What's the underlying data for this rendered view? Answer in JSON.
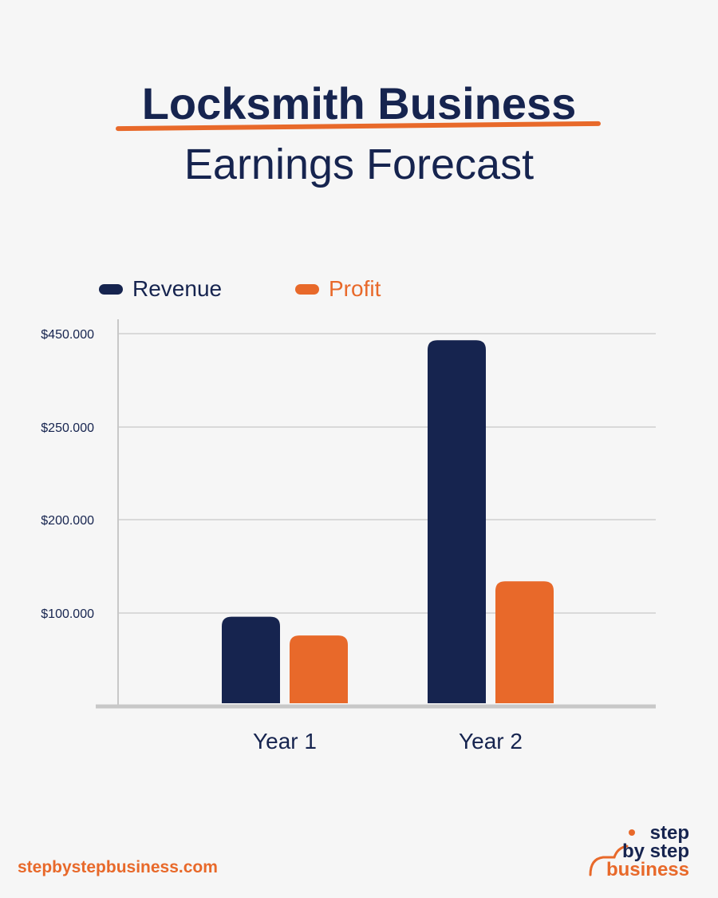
{
  "title": {
    "line1": "Locksmith Business",
    "line2": "Earnings Forecast"
  },
  "colors": {
    "revenue": "#16244f",
    "profit": "#e8692a",
    "grid": "#d9d9d9",
    "axis": "#c8c8c8",
    "text": "#16244f"
  },
  "footer": {
    "url": "stepbystepbusiness.com"
  },
  "logo": {
    "line1": "step",
    "line2": "by step",
    "line3": "business"
  },
  "chart_data": {
    "type": "bar",
    "title": "Locksmith Business Earnings Forecast",
    "xlabel": "",
    "ylabel": "",
    "categories": [
      "Year 1",
      "Year 2"
    ],
    "y_ticks": [
      "$100.000",
      "$200.000",
      "$250.000",
      "$450.000"
    ],
    "note": "Tick labels are unevenly spaced in the source; gridlines are evenly spaced.",
    "series": [
      {
        "name": "Revenue",
        "color": "#16244f",
        "values": [
          96000,
          436000
        ]
      },
      {
        "name": "Profit",
        "color": "#e8692a",
        "values": [
          76000,
          134000
        ]
      }
    ],
    "grid": true,
    "legend_position": "top-left"
  }
}
